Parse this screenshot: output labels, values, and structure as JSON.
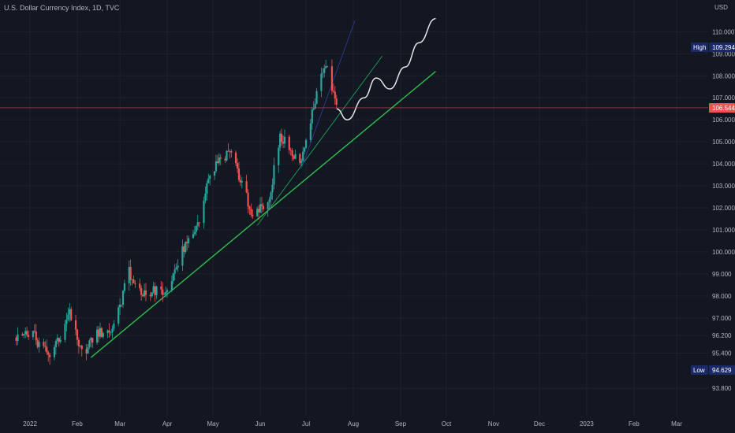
{
  "header": {
    "title": "U.S. Dollar Currency Index, 1D, TVC"
  },
  "colors": {
    "background": "#131722",
    "grid": "#1e222d",
    "up": "#26a69a",
    "down": "#ef5350",
    "trend_main": "#2dbd4e",
    "trend_mid": "#1e9e5a",
    "trend_steep": "#2f3a8f",
    "projection": "#e6e6e6",
    "price_line": "#ef5350",
    "badge_text": "#ffffff",
    "badge_dark": "#1a2a66",
    "axis_text": "#b2b5be"
  },
  "chart_data": {
    "type": "candlestick",
    "title": "U.S. Dollar Currency Index, 1D, TVC",
    "currency": "USD",
    "ylim": [
      93.2,
      110.8
    ],
    "y_ticks": [
      "93.800",
      "95.400",
      "96.200",
      "97.000",
      "98.000",
      "99.000",
      "100.000",
      "101.000",
      "102.000",
      "103.000",
      "104.000",
      "105.000",
      "106.000",
      "107.000",
      "108.000",
      "109.000",
      "110.000"
    ],
    "x_ticks": [
      "2022",
      "Feb",
      "Mar",
      "Apr",
      "May",
      "Jun",
      "Jul",
      "Aug",
      "Sep",
      "Oct",
      "Nov",
      "Dec",
      "2023",
      "Feb",
      "Mar"
    ],
    "grid": true,
    "last_price": {
      "label": "106.544",
      "value": 106.544
    },
    "high": {
      "label": "High",
      "value_label": "109.294",
      "value": 109.294
    },
    "low": {
      "label": "Low",
      "value_label": "94.629",
      "value": 94.629
    },
    "series": [
      {
        "date": "2021-12-23",
        "close": 96.1
      },
      {
        "date": "2022-01-03",
        "close": 96.2
      },
      {
        "date": "2022-01-14",
        "close": 95.2
      },
      {
        "date": "2022-01-27",
        "close": 97.2
      },
      {
        "date": "2022-02-04",
        "close": 95.4
      },
      {
        "date": "2022-02-14",
        "close": 96.2
      },
      {
        "date": "2022-02-25",
        "close": 96.6
      },
      {
        "date": "2022-03-07",
        "close": 99.1
      },
      {
        "date": "2022-03-17",
        "close": 98.1
      },
      {
        "date": "2022-03-31",
        "close": 98.3
      },
      {
        "date": "2022-04-12",
        "close": 100.2
      },
      {
        "date": "2022-04-22",
        "close": 101.4
      },
      {
        "date": "2022-04-28",
        "close": 103.5
      },
      {
        "date": "2022-05-13",
        "close": 104.6
      },
      {
        "date": "2022-05-27",
        "close": 101.6
      },
      {
        "date": "2022-06-07",
        "close": 102.5
      },
      {
        "date": "2022-06-14",
        "close": 105.3
      },
      {
        "date": "2022-06-27",
        "close": 104.0
      },
      {
        "date": "2022-07-05",
        "close": 106.4
      },
      {
        "date": "2022-07-14",
        "close": 108.6
      },
      {
        "date": "2022-07-21",
        "close": 106.6
      }
    ],
    "projection": [
      {
        "date": "2022-07-21",
        "value": 106.5
      },
      {
        "date": "2022-07-28",
        "value": 106.0
      },
      {
        "date": "2022-08-08",
        "value": 107.0
      },
      {
        "date": "2022-08-16",
        "value": 107.9
      },
      {
        "date": "2022-08-25",
        "value": 107.4
      },
      {
        "date": "2022-09-04",
        "value": 108.4
      },
      {
        "date": "2022-09-13",
        "value": 109.5
      },
      {
        "date": "2022-09-24",
        "value": 110.6
      }
    ],
    "trendlines": [
      {
        "start": {
          "date": "2022-02-10",
          "value": 95.2
        },
        "end": {
          "date": "2022-09-24",
          "value": 108.2
        }
      },
      {
        "start": {
          "date": "2022-05-30",
          "value": 101.2
        },
        "end": {
          "date": "2022-08-20",
          "value": 108.9
        }
      },
      {
        "start": {
          "date": "2022-06-28",
          "value": 103.8
        },
        "end": {
          "date": "2022-08-02",
          "value": 110.5
        }
      }
    ]
  }
}
